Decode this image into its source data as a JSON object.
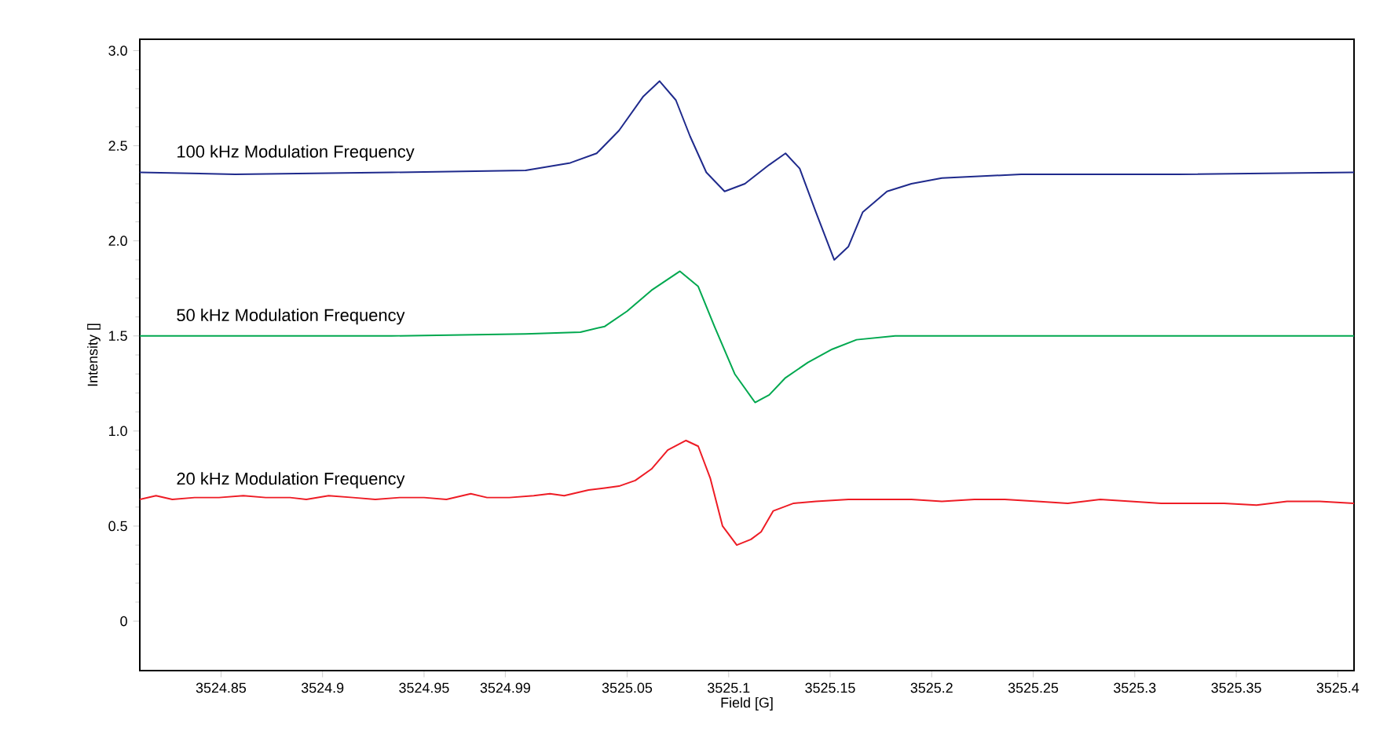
{
  "chart_data": {
    "type": "line",
    "xlabel": "Field [G]",
    "ylabel": "Intensity []",
    "xlim": [
      3524.81,
      3525.408
    ],
    "ylim": [
      -0.26,
      3.06
    ],
    "xticks": [
      3524.85,
      3524.9,
      3524.95,
      3524.99,
      3525.05,
      3525.1,
      3525.15,
      3525.2,
      3525.25,
      3525.3,
      3525.35,
      3525.4
    ],
    "yticks": [
      0,
      0.5,
      {
        "value": 1.0,
        "label": "1.0"
      },
      1.5,
      {
        "value": 2.0,
        "label": "2.0"
      },
      2.5,
      {
        "value": 3.0,
        "label": "3.0"
      }
    ],
    "grid": false,
    "legend": false,
    "marker": "none",
    "line_style": "solid",
    "series": [
      {
        "name": "100 kHz Modulation Frequency",
        "color": "#1f2a8c",
        "x": [
          3524.81,
          3524.857,
          3524.934,
          3525.0,
          3525.022,
          3525.035,
          3525.046,
          3525.058,
          3525.066,
          3525.074,
          3525.081,
          3525.089,
          3525.098,
          3525.108,
          3525.12,
          3525.128,
          3525.135,
          3525.143,
          3525.152,
          3525.159,
          3525.166,
          3525.178,
          3525.19,
          3525.205,
          3525.244,
          3525.321,
          3525.408
        ],
        "values": [
          2.36,
          2.35,
          2.36,
          2.37,
          2.41,
          2.46,
          2.58,
          2.76,
          2.84,
          2.74,
          2.55,
          2.36,
          2.26,
          2.3,
          2.4,
          2.46,
          2.38,
          2.15,
          1.9,
          1.97,
          2.15,
          2.26,
          2.3,
          2.33,
          2.35,
          2.35,
          2.36
        ]
      },
      {
        "name": "50 kHz Modulation Frequency",
        "color": "#00a84f",
        "x": [
          3524.81,
          3524.934,
          3525.0,
          3525.027,
          3525.039,
          3525.05,
          3525.062,
          3525.076,
          3525.085,
          3525.093,
          3525.103,
          3525.113,
          3525.12,
          3525.128,
          3525.139,
          3525.151,
          3525.163,
          3525.182,
          3525.244,
          3525.321,
          3525.408
        ],
        "values": [
          1.5,
          1.5,
          1.51,
          1.52,
          1.55,
          1.63,
          1.74,
          1.84,
          1.76,
          1.55,
          1.3,
          1.15,
          1.19,
          1.28,
          1.36,
          1.43,
          1.48,
          1.5,
          1.5,
          1.5,
          1.5
        ]
      },
      {
        "name": "20 kHz Modulation Frequency",
        "color": "#ee1c25",
        "x": [
          3524.81,
          3524.818,
          3524.826,
          3524.837,
          3524.849,
          3524.861,
          3524.872,
          3524.884,
          3524.892,
          3524.903,
          3524.915,
          3524.926,
          3524.938,
          3524.95,
          3524.961,
          3524.973,
          3524.981,
          3524.992,
          3525.004,
          3525.012,
          3525.019,
          3525.031,
          3525.039,
          3525.046,
          3525.054,
          3525.062,
          3525.07,
          3525.079,
          3525.085,
          3525.091,
          3525.097,
          3525.104,
          3525.111,
          3525.116,
          3525.122,
          3525.132,
          3525.143,
          3525.159,
          3525.174,
          3525.19,
          3525.205,
          3525.221,
          3525.236,
          3525.252,
          3525.267,
          3525.283,
          3525.298,
          3525.313,
          3525.329,
          3525.344,
          3525.36,
          3525.375,
          3525.391,
          3525.408
        ],
        "values": [
          0.64,
          0.66,
          0.64,
          0.65,
          0.65,
          0.66,
          0.65,
          0.65,
          0.64,
          0.66,
          0.65,
          0.64,
          0.65,
          0.65,
          0.64,
          0.67,
          0.65,
          0.65,
          0.66,
          0.67,
          0.66,
          0.69,
          0.7,
          0.71,
          0.74,
          0.8,
          0.9,
          0.95,
          0.92,
          0.75,
          0.5,
          0.4,
          0.43,
          0.47,
          0.58,
          0.62,
          0.63,
          0.64,
          0.64,
          0.64,
          0.63,
          0.64,
          0.64,
          0.63,
          0.62,
          0.64,
          0.63,
          0.62,
          0.62,
          0.62,
          0.61,
          0.63,
          0.63,
          0.62
        ]
      }
    ]
  }
}
